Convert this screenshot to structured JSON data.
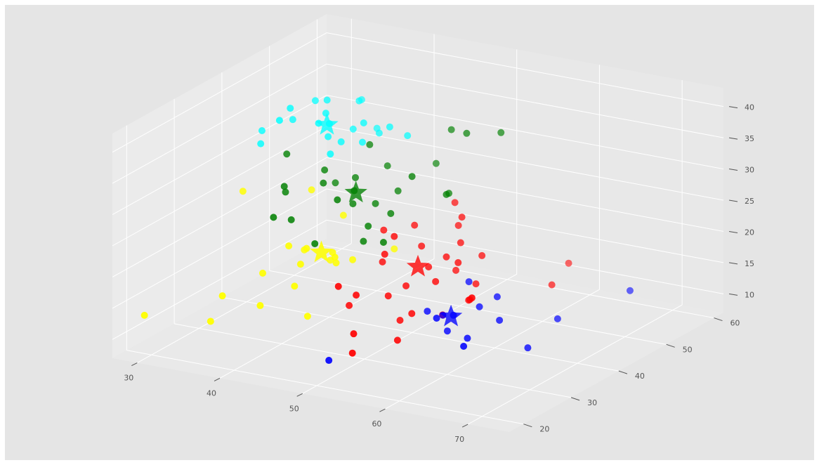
{
  "chart_data": {
    "type": "scatter3d",
    "xlim": [
      27,
      75
    ],
    "ylim": [
      17,
      62
    ],
    "zlim": [
      7,
      43
    ],
    "xticks": [
      30,
      40,
      50,
      60,
      70
    ],
    "yticks": [
      20,
      30,
      40,
      50,
      60
    ],
    "zticks": [
      10,
      15,
      20,
      25,
      30,
      35,
      40
    ],
    "grid": true,
    "depthshade": true,
    "series": [
      {
        "color": "#ff0000",
        "x": [
          52,
          50,
          54,
          48,
          55,
          51,
          49,
          53,
          56,
          47,
          50,
          52,
          57,
          46,
          54,
          51,
          53,
          49,
          55,
          58,
          48,
          52,
          50,
          56,
          53,
          47,
          60,
          51,
          54,
          49,
          63,
          58,
          52
        ],
        "y": [
          40,
          42,
          38,
          44,
          41,
          37,
          36,
          45,
          43,
          39,
          35,
          47,
          40,
          41,
          33,
          48,
          42,
          30,
          46,
          38,
          28,
          34,
          49,
          36,
          44,
          32,
          52,
          26,
          30,
          38,
          30,
          59,
          24
        ],
        "z": [
          18,
          20,
          17,
          22,
          19,
          16,
          21,
          20,
          15,
          18,
          15,
          23,
          14,
          22,
          14,
          21,
          19,
          17,
          18,
          15,
          19,
          12,
          24,
          13,
          16,
          14,
          12,
          13,
          11,
          23,
          20,
          12,
          11
        ]
      },
      {
        "color": "#0000ff",
        "x": [
          55,
          57,
          53,
          56,
          58,
          54,
          60,
          52,
          59,
          63,
          48,
          62,
          66,
          64,
          57
        ],
        "y": [
          40,
          42,
          38,
          37,
          44,
          45,
          41,
          43,
          36,
          48,
          26,
          30,
          58,
          40,
          33
        ],
        "z": [
          11,
          12,
          12,
          10,
          13,
          14,
          11,
          9,
          10,
          9,
          8,
          12,
          10,
          8,
          14
        ]
      },
      {
        "color": "#ffff00",
        "x": [
          43,
          45,
          42,
          46,
          44,
          41,
          47,
          40,
          43,
          45,
          48,
          39,
          33,
          42,
          38,
          28,
          36,
          46,
          49,
          44
        ],
        "y": [
          30,
          32,
          28,
          31,
          27,
          33,
          29,
          26,
          35,
          24,
          31,
          38,
          34,
          22,
          21,
          22,
          22,
          25,
          38,
          36
        ],
        "z": [
          23,
          22,
          24,
          21,
          22,
          21,
          23,
          20,
          19,
          20,
          22,
          28,
          28,
          17,
          18,
          12,
          13,
          15,
          21,
          26
        ]
      },
      {
        "color": "#008000",
        "x": [
          43,
          44,
          42,
          45,
          41,
          46,
          40,
          47,
          38,
          39,
          43,
          45,
          37,
          48,
          44,
          42,
          50,
          52,
          49,
          51,
          53,
          46,
          40,
          36,
          39,
          47,
          55,
          50
        ],
        "y": [
          40,
          38,
          42,
          41,
          37,
          44,
          39,
          36,
          34,
          43,
          47,
          33,
          36,
          39,
          30,
          45,
          40,
          48,
          50,
          46,
          42,
          52,
          32,
          38,
          30,
          35,
          50,
          34
        ],
        "z": [
          28,
          27,
          29,
          26,
          30,
          27,
          31,
          25,
          30,
          27,
          29,
          30,
          28,
          26,
          24,
          33,
          32,
          36,
          35,
          27,
          29,
          28,
          26,
          33,
          27,
          23,
          36,
          24
        ]
      },
      {
        "color": "#00ffff",
        "x": [
          40,
          39,
          41,
          38,
          42,
          37,
          43,
          36,
          40,
          41,
          35,
          44,
          39,
          42,
          33,
          38,
          43,
          45,
          46,
          40,
          34,
          37
        ],
        "y": [
          40,
          41,
          38,
          43,
          39,
          37,
          42,
          44,
          45,
          36,
          41,
          40,
          48,
          47,
          38,
          33,
          35,
          44,
          46,
          50,
          36,
          52
        ],
        "z": [
          38,
          39,
          37,
          40,
          36,
          41,
          38,
          39,
          35,
          40,
          37,
          36,
          38,
          34,
          36,
          41,
          36,
          37,
          35,
          33,
          35,
          36
        ]
      }
    ],
    "centroids": {
      "x": [
        51,
        55,
        44.5,
        43.5,
        40
      ],
      "y": [
        39.5,
        39.5,
        30.5,
        39.5,
        39.5
      ],
      "z": [
        18,
        11,
        22.5,
        28,
        38
      ]
    }
  }
}
